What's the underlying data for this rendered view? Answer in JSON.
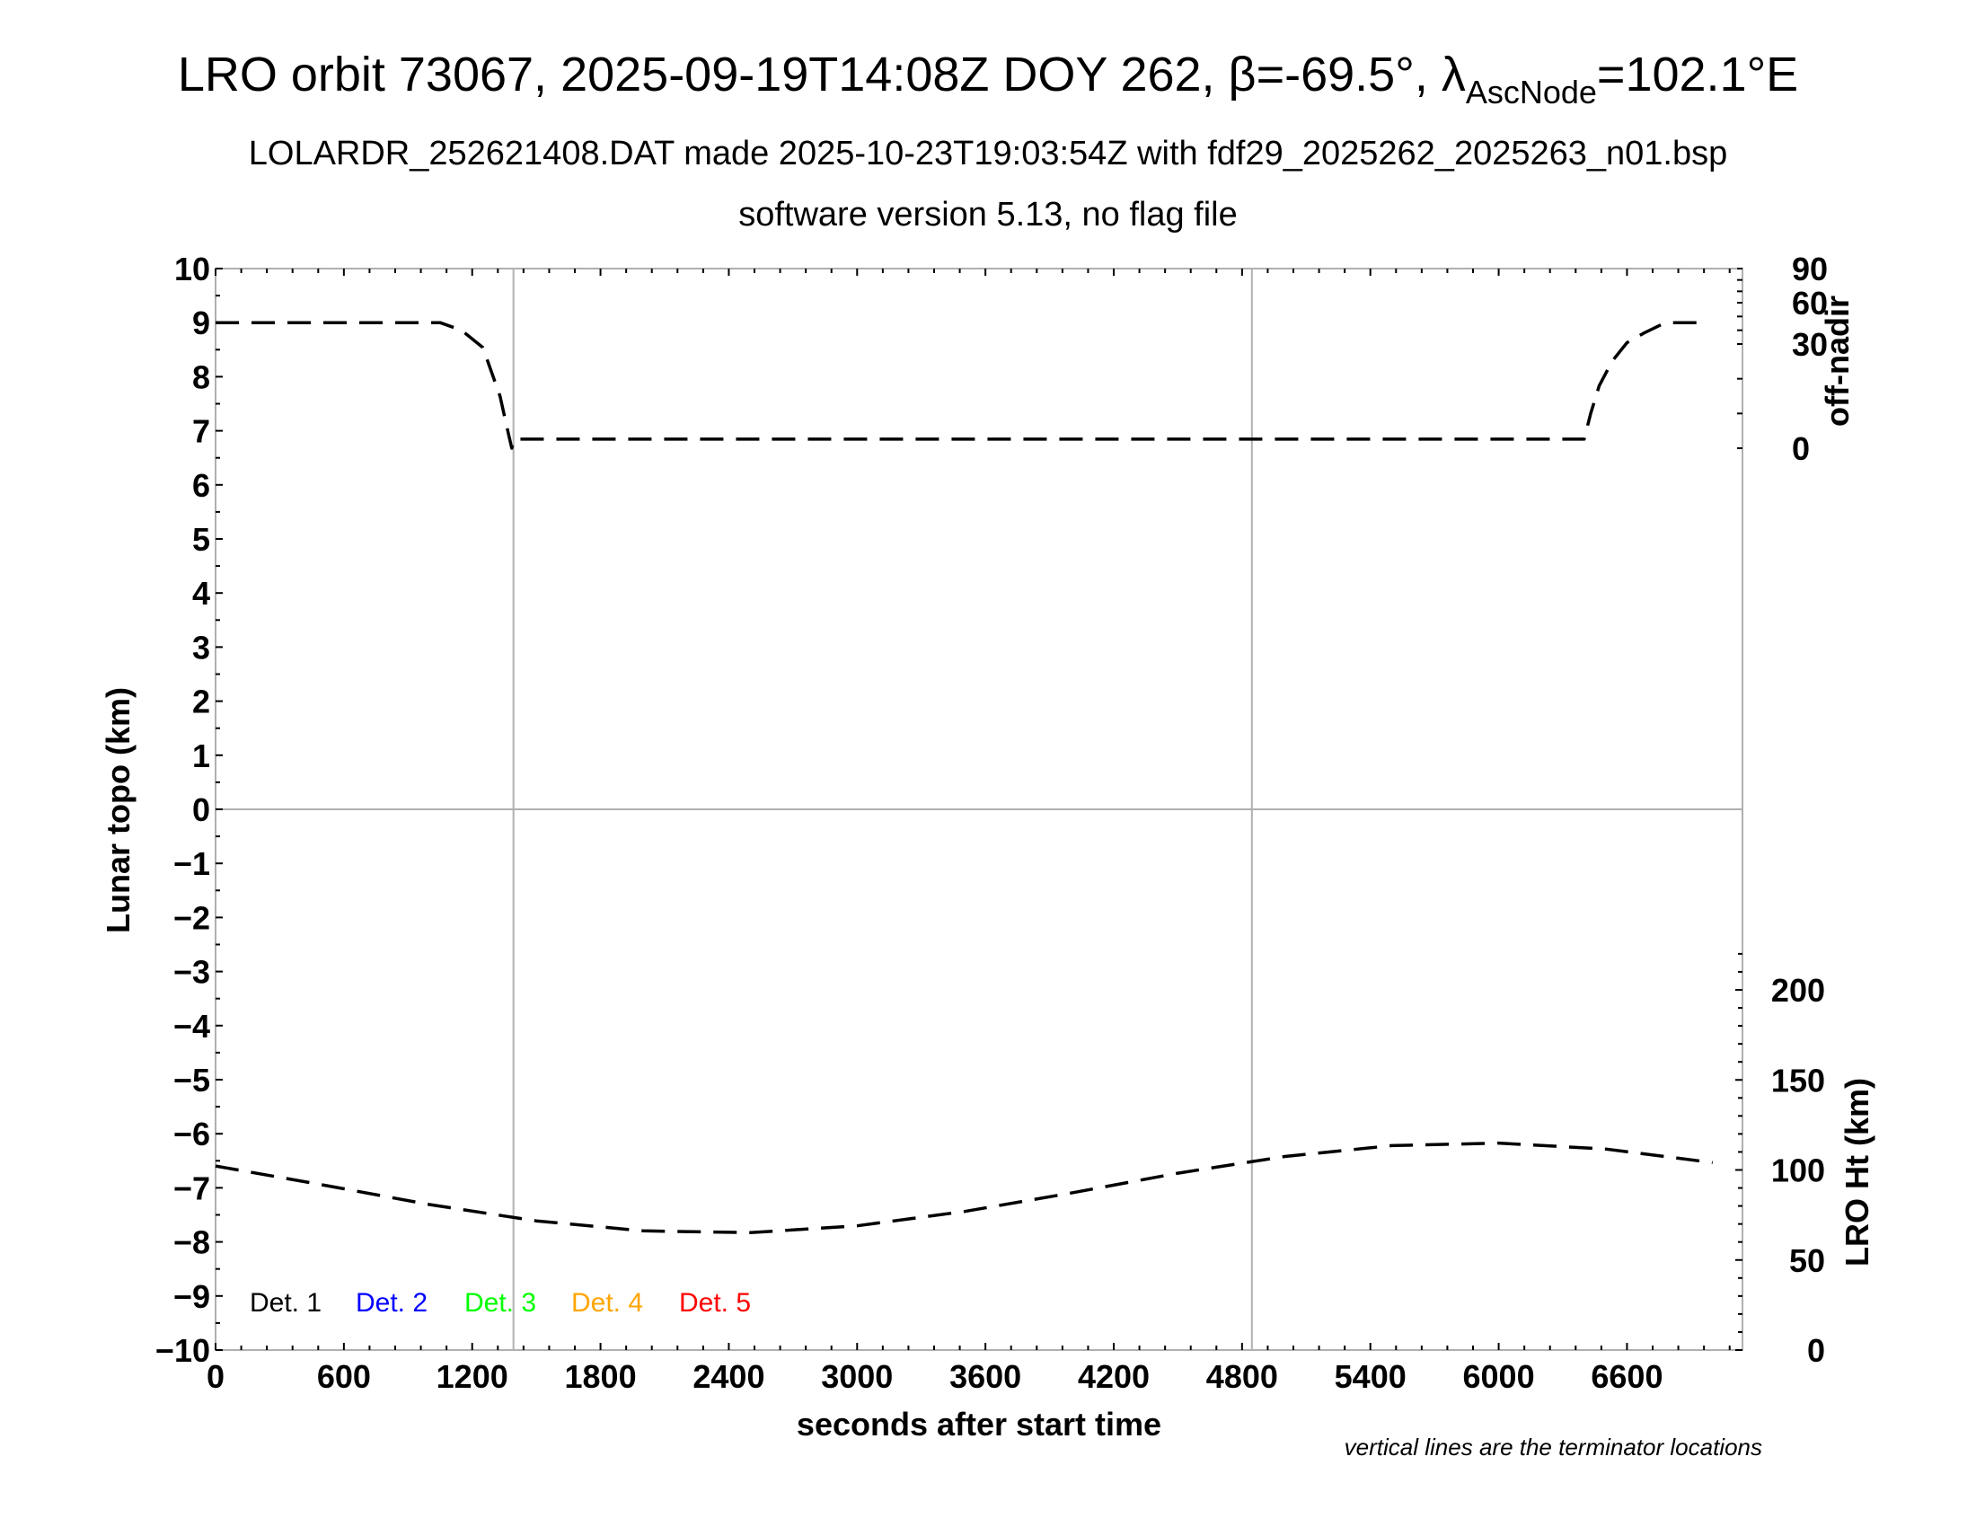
{
  "title": {
    "main": "LRO orbit 73067, 2025-09-19T14:08Z DOY 262, β=-69.5°, λ",
    "sub": "AscNode",
    "tail": "=102.1°E"
  },
  "subtitle": "LOLARDR_252621408.DAT made 2025-10-23T19:03:54Z with fdf29_2025262_2025263_n01.bsp",
  "subtitle2": "software version 5.13, no flag file",
  "chart_data": {
    "type": "line",
    "xlabel": "seconds after start time",
    "ylabel_left": "Lunar topo (km)",
    "ylabel_right_top": "off-nadir",
    "ylabel_right_bottom": "LRO Ht (km)",
    "xlim": [
      0,
      7140
    ],
    "ylim_left": [
      -10,
      10
    ],
    "x_ticks": [
      "0",
      "600",
      "1200",
      "1800",
      "2400",
      "3000",
      "3600",
      "4200",
      "4800",
      "5400",
      "6000",
      "6600"
    ],
    "y_ticks_left": [
      "10",
      "9",
      "8",
      "7",
      "6",
      "5",
      "4",
      "3",
      "2",
      "1",
      "0",
      "−1",
      "−2",
      "−3",
      "−4",
      "−5",
      "−6",
      "−7",
      "−8",
      "−9",
      "−10"
    ],
    "y_ticks_right_top": [
      "90",
      "60",
      "30",
      "0"
    ],
    "y_ticks_right_bottom": [
      "200",
      "150",
      "100",
      "50",
      "0"
    ],
    "terminator_lines_x": [
      1393,
      4846
    ],
    "note": "vertical lines are the terminator locations",
    "legend": [
      {
        "label": "Det. 1",
        "color": "#000000"
      },
      {
        "label": "Det. 2",
        "color": "#0000ff"
      },
      {
        "label": "Det. 3",
        "color": "#00ff00"
      },
      {
        "label": "Det. 4",
        "color": "#ffa500"
      },
      {
        "label": "Det. 5",
        "color": "#ff0000"
      }
    ],
    "series": [
      {
        "axis": "off-nadir (deg)",
        "style": "dashed",
        "color": "#000000",
        "x": [
          0,
          1050,
          1150,
          1250,
          1330,
          1370,
          1385,
          1395,
          1410,
          3000,
          4500,
          6400,
          6430,
          6470,
          6530,
          6600,
          6680,
          6760,
          6800,
          6950
        ],
        "y": [
          45.5,
          45.5,
          40,
          29,
          15,
          4,
          0,
          2.5,
          2.6,
          2.6,
          2.6,
          2.6,
          10,
          18,
          25,
          31,
          38,
          44,
          45.5,
          45.5
        ]
      },
      {
        "axis": "LRO Ht (km)",
        "style": "dashed",
        "color": "#000000",
        "x": [
          0,
          500,
          1000,
          1500,
          2000,
          2500,
          3000,
          3500,
          4000,
          4500,
          5000,
          5500,
          6000,
          6500,
          7000
        ],
        "y": [
          102.2,
          91.7,
          80.8,
          71.7,
          66.2,
          65.2,
          69.0,
          76.9,
          87.2,
          98.2,
          107.5,
          113.5,
          114.9,
          111.6,
          104.1
        ]
      }
    ]
  }
}
